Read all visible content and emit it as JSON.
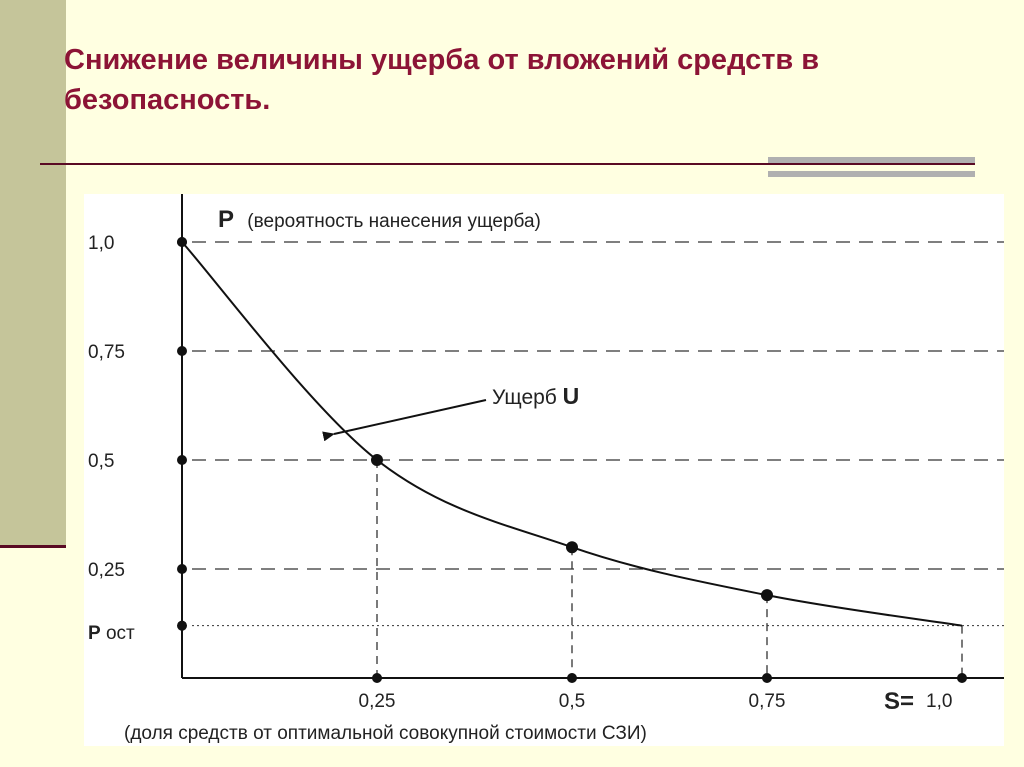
{
  "slide": {
    "title": "Снижение величины ущерба от вложений средств в безопасность."
  },
  "colors": {
    "title": "#8c1436",
    "background": "#ffffe1",
    "sidebar": "#c5c59a",
    "rule": "#5a0a24",
    "accent": "#b0b0b0"
  },
  "chart_data": {
    "type": "line",
    "title": "",
    "ylabel_symbol": "P",
    "ylabel": "(вероятность нанесения ущерба)",
    "xlabel_symbol": "S=",
    "xlabel": "(доля средств от оптимальной совокупной стоимости СЗИ)",
    "ylim": [
      0,
      1.0
    ],
    "xlim": [
      0,
      1.0
    ],
    "y_ticks": [
      {
        "value": 1.0,
        "label": "1,0"
      },
      {
        "value": 0.75,
        "label": "0,75"
      },
      {
        "value": 0.5,
        "label": "0,5"
      },
      {
        "value": 0.25,
        "label": "0,25"
      }
    ],
    "x_ticks": [
      {
        "value": 0.25,
        "label": "0,25"
      },
      {
        "value": 0.5,
        "label": "0,5"
      },
      {
        "value": 0.75,
        "label": "0,75"
      },
      {
        "value": 1.0,
        "label": "1,0"
      }
    ],
    "p_ost": {
      "value": 0.12,
      "label_main": "P",
      "label_sub": "ост"
    },
    "series": [
      {
        "label_main": "Ущерб ",
        "label_symbol": "U",
        "x": [
          0,
          0.25,
          0.5,
          0.75,
          1.0
        ],
        "y": [
          1.0,
          0.5,
          0.3,
          0.19,
          0.12
        ]
      }
    ],
    "grid_dashed": true
  }
}
